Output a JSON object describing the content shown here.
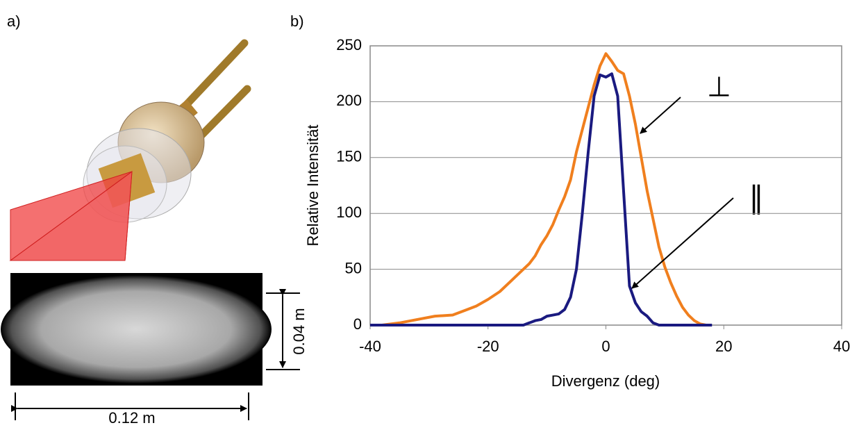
{
  "panel_labels": [
    "a)",
    "b)"
  ],
  "illustration": {
    "height_label": "0.04 m",
    "width_label": "0.12 m"
  },
  "chart_data": {
    "type": "line",
    "x_label": "Divergenz (deg)",
    "y_label": "Relative Intensität",
    "x": [
      -40,
      -38,
      -35,
      -32,
      -29,
      -26,
      -24,
      -22,
      -20,
      -18,
      -16,
      -14,
      -13,
      -12,
      -11,
      -10,
      -9,
      -8,
      -7,
      -6,
      -5,
      -4,
      -3,
      -2,
      -1,
      0,
      1,
      2,
      3,
      4,
      5,
      6,
      7,
      8,
      9,
      10,
      11,
      12,
      13,
      14,
      15,
      16,
      17,
      18
    ],
    "series": [
      {
        "name": "⊥",
        "color": "#f07f1e",
        "values": [
          null,
          0,
          2,
          5,
          8,
          9,
          13,
          17,
          23,
          30,
          40,
          50,
          55,
          62,
          72,
          80,
          90,
          103,
          115,
          130,
          155,
          175,
          195,
          215,
          232,
          243,
          236,
          228,
          225,
          205,
          180,
          150,
          120,
          95,
          70,
          52,
          38,
          26,
          16,
          9,
          4,
          1,
          0,
          null
        ]
      },
      {
        "name": "∥",
        "color": "#1a1a80",
        "values": [
          0,
          0,
          0,
          0,
          0,
          0,
          0,
          0,
          0,
          0,
          0,
          0,
          2,
          4,
          5,
          8,
          9,
          10,
          14,
          25,
          50,
          100,
          155,
          205,
          224,
          222,
          225,
          205,
          120,
          35,
          20,
          12,
          8,
          2,
          0,
          0,
          0,
          0,
          0,
          0,
          0,
          0,
          0,
          0
        ]
      }
    ],
    "xlim": [
      -40,
      40
    ],
    "xticks": [
      -40,
      -20,
      0,
      20,
      40
    ],
    "ylim": [
      0,
      250
    ],
    "yticks": [
      0,
      50,
      100,
      150,
      200,
      250
    ],
    "grid": true
  }
}
